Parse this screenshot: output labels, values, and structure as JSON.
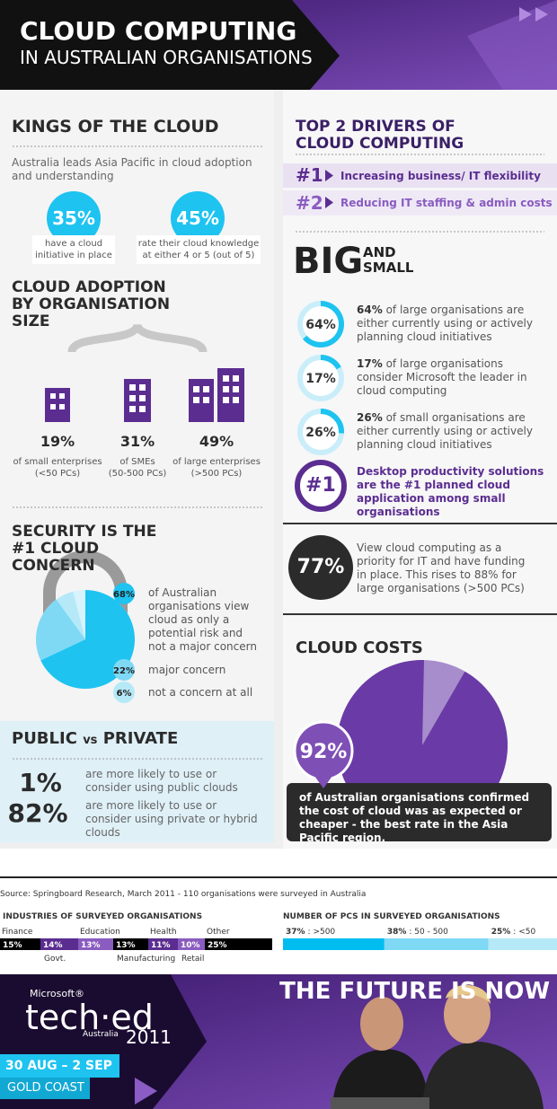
{
  "header": {
    "title": "CLOUD COMPUTING",
    "subtitle": "IN AUSTRALIAN ORGANISATIONS"
  },
  "kings": {
    "title": "KINGS OF THE CLOUD",
    "intro": "Australia leads Asia Pacific in cloud adoption and understanding",
    "stats": [
      {
        "value": "35%",
        "text": "have a cloud initiative in place"
      },
      {
        "value": "45%",
        "text": "rate their cloud knowledge at either 4 or 5 (out of 5)"
      }
    ]
  },
  "adoption": {
    "title": "CLOUD ADOPTION BY ORGANISATION SIZE",
    "groups": [
      {
        "value": "19%",
        "text": "of small enterprises",
        "sub": "(<50 PCs)"
      },
      {
        "value": "31%",
        "text": "of SMEs",
        "sub": "(50-500 PCs)"
      },
      {
        "value": "49%",
        "text": "of large enterprises",
        "sub": "(>500 PCs)"
      }
    ]
  },
  "security": {
    "title": "SECURITY IS THE #1 CLOUD CONCERN",
    "items": [
      {
        "value": 68,
        "label": "68%",
        "text": "of Australian organisations view cloud as only a potential risk and not a major concern"
      },
      {
        "value": 22,
        "label": "22%",
        "text": "major concern"
      },
      {
        "value": 6,
        "label": "6%",
        "text": "not a concern at all"
      }
    ]
  },
  "public_private": {
    "title_a": "PUBLIC",
    "title_vs": "vs",
    "title_b": "PRIVATE",
    "items": [
      {
        "value": "1%",
        "text": "are more likely to use or consider using public clouds"
      },
      {
        "value": "82%",
        "text": "are more likely to use or consider using private or hybrid clouds"
      }
    ]
  },
  "drivers": {
    "title": "TOP 2 DRIVERS OF CLOUD COMPUTING",
    "items": [
      {
        "rank": "#1",
        "text": "Increasing business/ IT flexibility"
      },
      {
        "rank": "#2",
        "text": "Reducing IT staffing & admin costs"
      }
    ]
  },
  "big_small": {
    "title_big": "BIG",
    "title_and": "AND",
    "title_small": "SMALL",
    "stats": [
      {
        "value": 64,
        "label": "64%",
        "text": "of large organisations are either currently using or actively planning cloud initiatives"
      },
      {
        "value": 17,
        "label": "17%",
        "text": "of large organisations consider Microsoft the leader in cloud computing"
      },
      {
        "value": 26,
        "label": "26%",
        "text": "of small organisations are either currently using or actively planning cloud initiatives"
      }
    ],
    "highlight": {
      "rank": "#1",
      "text": "Desktop productivity solutions are the #1 planned cloud application among small organisations"
    }
  },
  "priority": {
    "value": "77%",
    "text": "View cloud computing as a priority for IT and have funding in place. This rises to 88% for large organisations (>500 PCs)"
  },
  "costs": {
    "title": "CLOUD COSTS",
    "value": 92,
    "label": "92%",
    "text": "of Australian organisations confirmed the cost of cloud was as expected or cheaper - the best rate in the Asia Pacific region."
  },
  "source": "Source: Springboard Research, March 2011 - 110 organisations were surveyed in Australia",
  "industries": {
    "title": "INDUSTRIES OF SURVEYED ORGANISATIONS",
    "segments": [
      {
        "name": "Finance",
        "value": 15,
        "label": "15%",
        "color": "#000000"
      },
      {
        "name": "Govt.",
        "value": 14,
        "label": "14%",
        "color": "#5b2d91"
      },
      {
        "name": "Education",
        "value": 13,
        "label": "13%",
        "color": "#8a5cc0"
      },
      {
        "name": "Manufacturing",
        "value": 13,
        "label": "13%",
        "color": "#000000"
      },
      {
        "name": "Health",
        "value": 11,
        "label": "11%",
        "color": "#5b2d91"
      },
      {
        "name": "Retail",
        "value": 10,
        "label": "10%",
        "color": "#8a5cc0"
      },
      {
        "name": "Other",
        "value": 25,
        "label": "25%",
        "color": "#000000"
      }
    ]
  },
  "pcs": {
    "title": "NUMBER OF PCS IN SURVEYED ORGANISATIONS",
    "segments": [
      {
        "value": 37,
        "label": "37%",
        "range": ": >500",
        "color": "#00bdf0"
      },
      {
        "value": 38,
        "label": "38%",
        "range": ": 50 - 500",
        "color": "#7fd9f5"
      },
      {
        "value": 25,
        "label": "25%",
        "range": ": <50",
        "color": "#b5e9f8"
      }
    ]
  },
  "footer": {
    "brand": "Microsoft®",
    "event": "tech·ed",
    "location": "Australia",
    "year": "2011",
    "tagline": "THE FUTURE IS NOW",
    "dates": "30 AUG – 2 SEP",
    "venue": "GOLD COAST"
  }
}
